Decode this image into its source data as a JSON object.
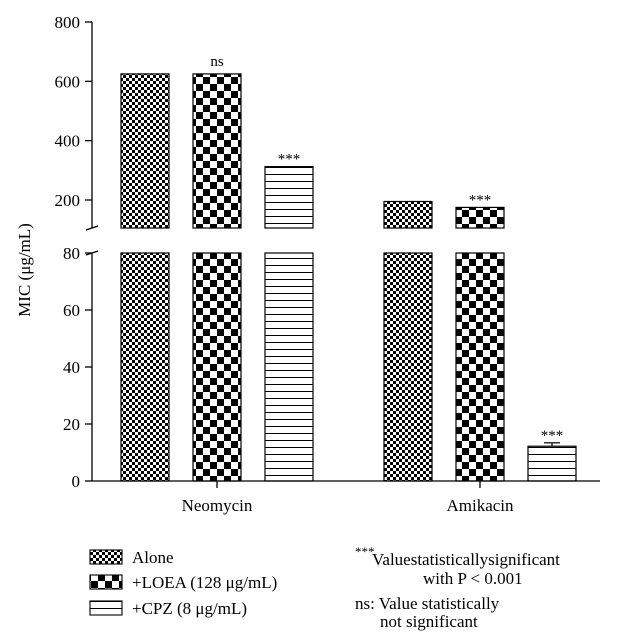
{
  "chart_data": {
    "type": "bar",
    "ylabel": "MIC (μg/mL)",
    "categories": [
      "Neomycin",
      "Amikacin"
    ],
    "series": [
      {
        "name": "Alone",
        "values": [
          625,
          195
        ]
      },
      {
        "name": "+LOEA (128 μg/mL)",
        "values": [
          625,
          175
        ]
      },
      {
        "name": "+CPZ (8 μg/mL)",
        "values": [
          312.5,
          12.2
        ],
        "errors": [
          null,
          1.2
        ]
      }
    ],
    "annotations": [
      [
        "",
        "ns",
        "***"
      ],
      [
        "",
        "***",
        "***"
      ]
    ],
    "y_axis": {
      "broken": true,
      "lower_range": [
        0,
        80
      ],
      "upper_range": [
        100,
        800
      ],
      "lower_ticks": [
        "0",
        "20",
        "40",
        "60",
        "80"
      ],
      "upper_ticks": [
        "200",
        "400",
        "600",
        "800"
      ]
    },
    "legend_placement": "bottom-left",
    "notes": [
      {
        "prefix": "***",
        "line1": "Valuestatisticallysignificant",
        "line2": "with P < 0.001"
      },
      {
        "prefix": "",
        "line1": "ns: Value statistically",
        "line2": "not significant"
      }
    ]
  }
}
